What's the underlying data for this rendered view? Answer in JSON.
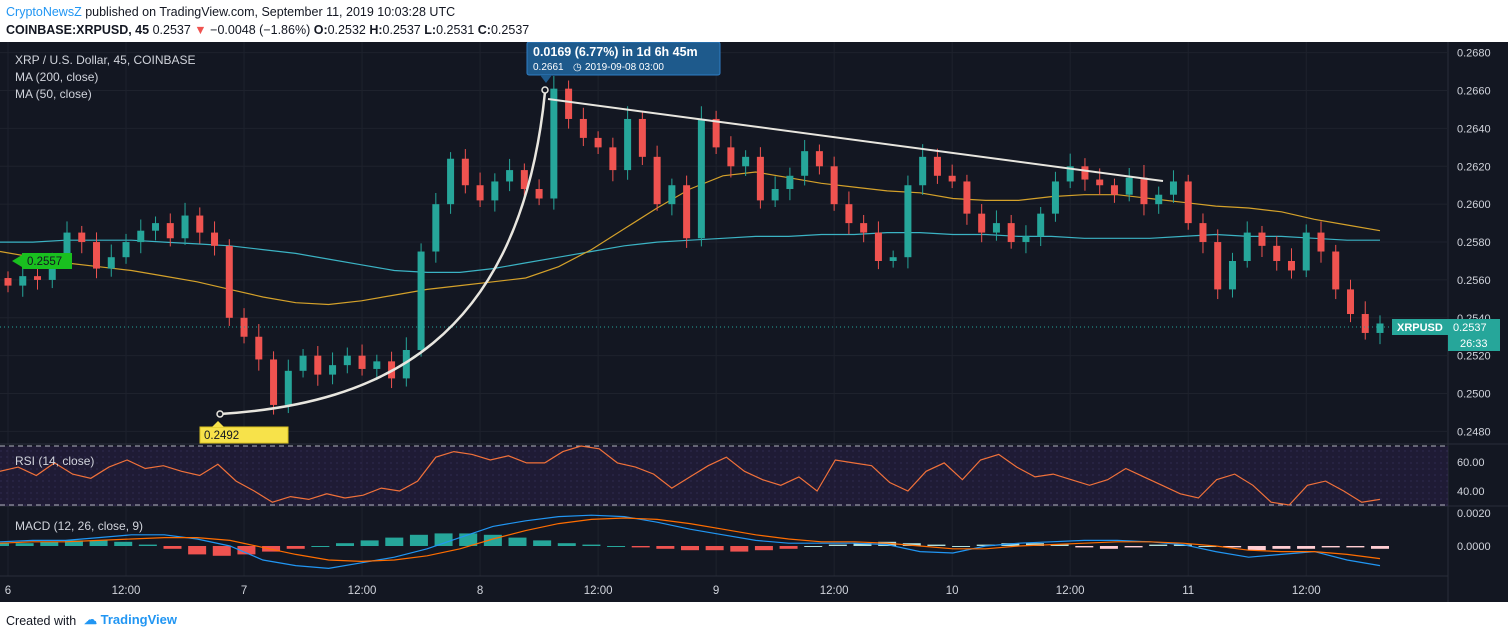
{
  "header": {
    "brand": "CryptoNewsZ",
    "published": " published on TradingView.com, September 11, 2019 10:03:28 UTC",
    "symbol": "COINBASE:XRPUSD, 45",
    "last": "0.2537",
    "change": "−0.0048 (−1.86%)",
    "o_label": "O:",
    "o": "0.2532",
    "h_label": "H:",
    "h": "0.2537",
    "l_label": "L:",
    "l": "0.2531",
    "c_label": "C:",
    "c": "0.2537"
  },
  "legend": {
    "title": "XRP / U.S. Dollar, 45, COINBASE",
    "ma200": "MA (200, close)",
    "ma50": "MA (50, close)"
  },
  "annotations": {
    "measure_main": "0.0169 (6.77%) in 1d 6h 45m",
    "measure_sub_price": "0.2661",
    "measure_sub_time": "2019-09-08  03:00",
    "low_label": "0.2492",
    "left_label": "0.2557",
    "price_tag": "XRPUSD",
    "price_tag_value": "0.2537",
    "countdown": "26:33"
  },
  "rsi": {
    "title": "RSI (14, close)",
    "ticks": [
      "60.00",
      "40.00"
    ]
  },
  "macd": {
    "title": "MACD (12, 26, close, 9)",
    "ticks": [
      "0.0020",
      "0.0000"
    ]
  },
  "footer": {
    "created": "Created with",
    "logo_text": "TradingView"
  },
  "colors": {
    "up": "#26a69a",
    "down": "#ef5350",
    "ma200": "#3bb3c4",
    "ma50": "#d4a12a",
    "rsi": "#f0713a"
  },
  "chart_data": {
    "type": "candlestick",
    "y_ticks": [
      "0.2680",
      "0.2660",
      "0.2640",
      "0.2620",
      "0.2600",
      "0.2580",
      "0.2560",
      "0.2540",
      "0.2520",
      "0.2500",
      "0.2480"
    ],
    "ylim": [
      0.2476,
      0.2683
    ],
    "x_ticks": [
      {
        "label": "6",
        "i": 0
      },
      {
        "label": "12:00",
        "i": 8
      },
      {
        "label": "7",
        "i": 16
      },
      {
        "label": "12:00",
        "i": 24
      },
      {
        "label": "8",
        "i": 32
      },
      {
        "label": "12:00",
        "i": 40
      },
      {
        "label": "9",
        "i": 48
      },
      {
        "label": "12:00",
        "i": 56
      },
      {
        "label": "10",
        "i": 64
      },
      {
        "label": "12:00",
        "i": 72
      },
      {
        "label": "11",
        "i": 80
      },
      {
        "label": "12:00",
        "i": 88
      }
    ],
    "close": [
      0.2557,
      0.2562,
      0.256,
      0.257,
      0.2585,
      0.258,
      0.2566,
      0.2572,
      0.258,
      0.2586,
      0.259,
      0.2582,
      0.2594,
      0.2585,
      0.2578,
      0.254,
      0.253,
      0.2518,
      0.2494,
      0.2512,
      0.252,
      0.251,
      0.2515,
      0.252,
      0.2513,
      0.2517,
      0.2508,
      0.2523,
      0.2575,
      0.26,
      0.2624,
      0.261,
      0.2602,
      0.2612,
      0.2618,
      0.2608,
      0.2603,
      0.2661,
      0.2645,
      0.2635,
      0.263,
      0.2618,
      0.2645,
      0.2625,
      0.26,
      0.261,
      0.2582,
      0.2645,
      0.263,
      0.262,
      0.2625,
      0.2602,
      0.2608,
      0.2615,
      0.2628,
      0.262,
      0.26,
      0.259,
      0.2585,
      0.257,
      0.2572,
      0.261,
      0.2625,
      0.2615,
      0.2612,
      0.2595,
      0.2585,
      0.259,
      0.258,
      0.2583,
      0.2595,
      0.2612,
      0.262,
      0.2613,
      0.261,
      0.2605,
      0.2614,
      0.26,
      0.2605,
      0.2612,
      0.259,
      0.258,
      0.2555,
      0.257,
      0.2585,
      0.2578,
      0.257,
      0.2565,
      0.2585,
      0.2575,
      0.2555,
      0.2542,
      0.2532,
      0.2537
    ],
    "ma200": [
      0.258,
      0.258,
      0.2581,
      0.2581,
      0.2581,
      0.258,
      0.2579,
      0.2578,
      0.2576,
      0.2574,
      0.2571,
      0.2568,
      0.2565,
      0.2564,
      0.2564,
      0.2566,
      0.2569,
      0.2572,
      0.2575,
      0.2578,
      0.258,
      0.2581,
      0.2582,
      0.2583,
      0.2583,
      0.2584,
      0.2584,
      0.2585,
      0.2585,
      0.2584,
      0.2584,
      0.2583,
      0.2583,
      0.2582,
      0.2582,
      0.2582,
      0.2583,
      0.2584,
      0.2583,
      0.2583,
      0.2582,
      0.2581,
      0.2581
    ],
    "ma50": [
      0.2575,
      0.2572,
      0.2569,
      0.2567,
      0.2565,
      0.2562,
      0.2559,
      0.2555,
      0.2551,
      0.2548,
      0.2547,
      0.2549,
      0.2552,
      0.2555,
      0.2557,
      0.2559,
      0.2561,
      0.2567,
      0.2576,
      0.2587,
      0.2598,
      0.2608,
      0.2615,
      0.2617,
      0.2614,
      0.2611,
      0.2609,
      0.2607,
      0.2606,
      0.2603,
      0.2602,
      0.2602,
      0.2604,
      0.2605,
      0.2605,
      0.2603,
      0.2601,
      0.2599,
      0.2598,
      0.2596,
      0.2592,
      0.2589,
      0.2586
    ],
    "rsi": [
      52,
      55,
      49,
      58,
      50,
      47,
      55,
      60,
      54,
      56,
      52,
      49,
      57,
      45,
      38,
      30,
      34,
      32,
      36,
      33,
      35,
      40,
      38,
      45,
      62,
      66,
      64,
      60,
      63,
      58,
      58,
      66,
      70,
      68,
      58,
      55,
      50,
      40,
      48,
      56,
      62,
      52,
      46,
      42,
      48,
      38,
      60,
      58,
      56,
      44,
      38,
      52,
      58,
      46,
      60,
      64,
      55,
      48,
      50,
      46,
      42,
      46,
      54,
      48,
      42,
      36,
      33,
      46,
      50,
      42,
      30,
      28,
      42,
      45,
      38,
      30,
      32
    ],
    "macd": [
      0.0003,
      0.0004,
      0.0004,
      0.0006,
      0.0008,
      0.0008,
      0.0005,
      0.0,
      -0.001,
      -0.0014,
      -0.0016,
      -0.0012,
      -0.0008,
      -0.0002,
      0.0006,
      0.0014,
      0.0018,
      0.0021,
      0.0022,
      0.0021,
      0.0017,
      0.0012,
      0.0008,
      0.0004,
      0.0002,
      0.0002,
      0.0002,
      0.0001,
      -0.0004,
      -0.0005,
      0.0,
      0.0002,
      0.0003,
      0.0004,
      0.0004,
      0.0003,
      0.0001,
      -0.0004,
      -0.0008,
      -0.0006,
      -0.0004,
      -0.001,
      -0.0014
    ],
    "macd_signal": [
      0.0002,
      0.0003,
      0.0003,
      0.0004,
      0.0005,
      0.0006,
      0.0006,
      0.0004,
      -0.0001,
      -0.0006,
      -0.001,
      -0.0011,
      -0.001,
      -0.0007,
      -0.0002,
      0.0005,
      0.0011,
      0.0016,
      0.0019,
      0.002,
      0.0019,
      0.0016,
      0.0012,
      0.0008,
      0.0005,
      0.0003,
      0.0003,
      0.0002,
      0.0,
      -0.0002,
      -0.0002,
      0.0,
      0.0001,
      0.0002,
      0.0003,
      0.0003,
      0.0002,
      0.0,
      -0.0003,
      -0.0004,
      -0.0004,
      -0.0006,
      -0.0009
    ],
    "macd_hist": [
      0.0002,
      0.0002,
      0.0003,
      0.0004,
      0.0004,
      0.0003,
      0.0001,
      -0.0002,
      -0.0006,
      -0.0007,
      -0.0006,
      -0.0004,
      -0.0002,
      0.0,
      0.0002,
      0.0004,
      0.0006,
      0.0008,
      0.0009,
      0.0009,
      0.0008,
      0.0006,
      0.0004,
      0.0002,
      0.0001,
      0.0,
      -0.0001,
      -0.0002,
      -0.0003,
      -0.0003,
      -0.0004,
      -0.0003,
      -0.0002,
      0.0,
      0.0001,
      0.0002,
      0.0003,
      0.0002,
      0.0001,
      0.0,
      0.0001,
      0.0002,
      0.0002,
      0.0001,
      -0.0001,
      -0.0002,
      -0.0001,
      0.0001,
      0.0001,
      0.0,
      -0.0001,
      -0.0003,
      -0.0002,
      -0.0002,
      -0.0001,
      -0.0001,
      -0.0002
    ]
  }
}
